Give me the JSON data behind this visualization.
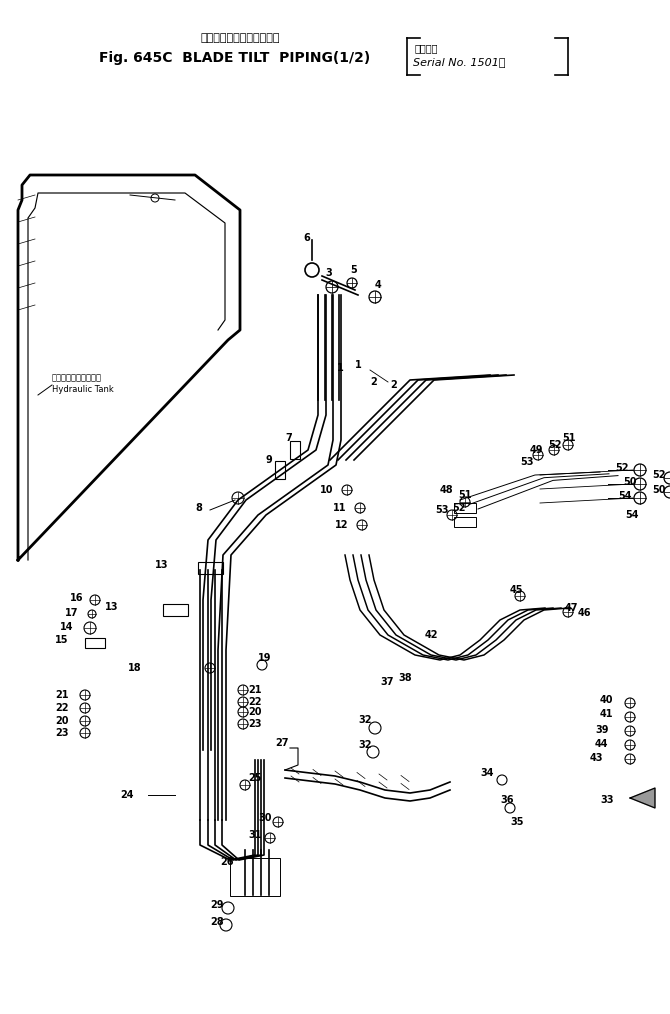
{
  "title_jp": "ブレードチルトバイピング",
  "title_en": "Fig. 645C  BLADE TILT  PIPING(1/2)",
  "serial_jp": "適用号機",
  "serial_en": "Serial No. 1501～",
  "hydraulic_jp": "ハイドロリックタンク",
  "hydraulic_en": "Hydraulic Tank",
  "bg_color": "#ffffff",
  "line_color": "#000000",
  "fig_width": 6.7,
  "fig_height": 10.14,
  "dpi": 100
}
